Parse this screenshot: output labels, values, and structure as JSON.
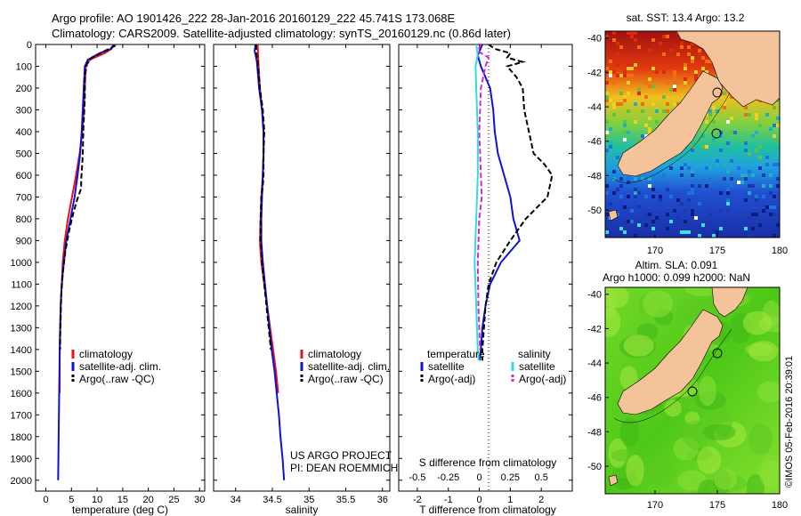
{
  "header": {
    "line1": "Argo profile: AO 1901426_222 28-Jan-2016 20160129_222 45.741S 173.068E",
    "line2": "Climatology: CARS2009. Satellite-adjusted climatology: synTS_20160129.nc (0.86d later)"
  },
  "watermark": "©IMOS 05-Feb-2016 20:39:01",
  "colors": {
    "red": "#e8101a",
    "blue": "#1010d8",
    "black": "#000000",
    "cyan": "#33dddd",
    "magenta": "#dd22dd"
  },
  "chart_data": [
    {
      "type": "line",
      "id": "temperature",
      "xlabel": "temperature (deg C)",
      "ylabel": "",
      "xlim": [
        -2,
        31
      ],
      "ylim": [
        2050,
        0
      ],
      "xticks": [
        0,
        5,
        10,
        15,
        20,
        25,
        30
      ],
      "yticks": [
        0,
        100,
        200,
        300,
        400,
        500,
        600,
        700,
        800,
        900,
        1000,
        1100,
        1200,
        1300,
        1400,
        1500,
        1600,
        1700,
        1800,
        1900,
        2000
      ],
      "legend": [
        "climatology",
        "satellite-adj. clim.",
        "Argo(..raw -QC)"
      ],
      "legend_position": "lower-right",
      "series": [
        {
          "name": "climatology",
          "color": "#e8101a",
          "style": "solid",
          "points": [
            [
              13.2,
              0
            ],
            [
              12.8,
              20
            ],
            [
              11.5,
              40
            ],
            [
              8.6,
              70
            ],
            [
              7.8,
              100
            ],
            [
              7.6,
              200
            ],
            [
              7.4,
              300
            ],
            [
              7.1,
              400
            ],
            [
              6.6,
              500
            ],
            [
              5.9,
              600
            ],
            [
              5.1,
              700
            ],
            [
              4.3,
              800
            ],
            [
              3.7,
              900
            ],
            [
              3.3,
              1000
            ],
            [
              3.1,
              1100
            ],
            [
              2.9,
              1200
            ],
            [
              2.8,
              1300
            ],
            [
              2.7,
              1400
            ],
            [
              2.7,
              1600
            ]
          ]
        },
        {
          "name": "satellite-adj. clim.",
          "color": "#1010d8",
          "style": "solid",
          "points": [
            [
              13.3,
              0
            ],
            [
              12.7,
              20
            ],
            [
              10.5,
              40
            ],
            [
              8.2,
              70
            ],
            [
              7.6,
              100
            ],
            [
              7.4,
              200
            ],
            [
              7.2,
              300
            ],
            [
              7.0,
              400
            ],
            [
              6.7,
              500
            ],
            [
              6.2,
              600
            ],
            [
              5.6,
              700
            ],
            [
              4.8,
              800
            ],
            [
              4.0,
              900
            ],
            [
              3.5,
              1000
            ],
            [
              3.1,
              1100
            ],
            [
              2.9,
              1200
            ],
            [
              2.8,
              1300
            ],
            [
              2.7,
              1400
            ],
            [
              2.6,
              1600
            ],
            [
              2.5,
              1800
            ],
            [
              2.4,
              2000
            ]
          ]
        },
        {
          "name": "Argo(..raw -QC)",
          "color": "#000000",
          "style": "dashed",
          "points": [
            [
              13.6,
              5
            ],
            [
              11.5,
              30
            ],
            [
              9.0,
              60
            ],
            [
              8.0,
              90
            ],
            [
              7.6,
              150
            ],
            [
              7.6,
              250
            ],
            [
              7.3,
              400
            ],
            [
              7.2,
              500
            ],
            [
              7.1,
              550
            ],
            [
              6.9,
              620
            ],
            [
              6.9,
              660
            ],
            [
              6.0,
              720
            ],
            [
              5.3,
              780
            ],
            [
              4.5,
              860
            ],
            [
              3.8,
              950
            ],
            [
              3.3,
              1050
            ],
            [
              3.0,
              1150
            ],
            [
              2.9,
              1250
            ],
            [
              2.8,
              1350
            ],
            [
              2.8,
              1400
            ]
          ]
        }
      ]
    },
    {
      "type": "line",
      "id": "salinity",
      "xlabel": "salinity",
      "ylabel": "",
      "xlim": [
        33.7,
        36.1
      ],
      "ylim": [
        2050,
        0
      ],
      "xticks": [
        34,
        34.5,
        35,
        35.5,
        36
      ],
      "legend": [
        "climatology",
        "satellite-adj. clim.",
        "Argo(..raw -QC)"
      ],
      "legend_position": "lower-right",
      "annotations": [
        "US ARGO PROJECT",
        "PI: DEAN ROEMMICH"
      ],
      "series": [
        {
          "name": "climatology",
          "color": "#e8101a",
          "style": "solid",
          "points": [
            [
              34.3,
              0
            ],
            [
              34.31,
              80
            ],
            [
              34.33,
              200
            ],
            [
              34.36,
              300
            ],
            [
              34.38,
              400
            ],
            [
              34.38,
              500
            ],
            [
              34.37,
              600
            ],
            [
              34.35,
              700
            ],
            [
              34.34,
              800
            ],
            [
              34.33,
              900
            ],
            [
              34.35,
              1000
            ],
            [
              34.39,
              1100
            ],
            [
              34.43,
              1200
            ],
            [
              34.47,
              1300
            ],
            [
              34.51,
              1400
            ],
            [
              34.55,
              1500
            ],
            [
              34.58,
              1600
            ]
          ]
        },
        {
          "name": "satellite-adj. clim.",
          "color": "#1010d8",
          "style": "solid",
          "points": [
            [
              34.27,
              0
            ],
            [
              34.26,
              30
            ],
            [
              34.29,
              80
            ],
            [
              34.32,
              200
            ],
            [
              34.36,
              300
            ],
            [
              34.38,
              400
            ],
            [
              34.38,
              500
            ],
            [
              34.37,
              600
            ],
            [
              34.36,
              700
            ],
            [
              34.35,
              800
            ],
            [
              34.35,
              900
            ],
            [
              34.37,
              1000
            ],
            [
              34.4,
              1100
            ],
            [
              34.43,
              1200
            ],
            [
              34.46,
              1300
            ],
            [
              34.49,
              1400
            ],
            [
              34.53,
              1500
            ],
            [
              34.56,
              1600
            ],
            [
              34.59,
              1700
            ],
            [
              34.61,
              1800
            ],
            [
              34.64,
              1900
            ],
            [
              34.66,
              2000
            ]
          ]
        },
        {
          "name": "Argo(..raw -QC)",
          "color": "#000000",
          "style": "dashed",
          "points": [
            [
              34.28,
              0
            ],
            [
              34.28,
              30
            ],
            [
              34.3,
              80
            ],
            [
              34.33,
              200
            ],
            [
              34.37,
              300
            ],
            [
              34.39,
              400
            ],
            [
              34.38,
              500
            ],
            [
              34.38,
              600
            ],
            [
              34.37,
              650
            ],
            [
              34.35,
              700
            ],
            [
              34.34,
              800
            ],
            [
              34.34,
              900
            ],
            [
              34.36,
              1000
            ],
            [
              34.39,
              1100
            ],
            [
              34.42,
              1200
            ],
            [
              34.45,
              1300
            ],
            [
              34.48,
              1400
            ]
          ]
        }
      ]
    },
    {
      "type": "line",
      "id": "difference",
      "xlabel": "T difference from climatology",
      "xlabel2": "S difference from climatology",
      "ylabel": "",
      "xlim": [
        -2.6,
        3.0
      ],
      "ylim": [
        2050,
        0
      ],
      "xticks": [
        -2,
        -1,
        0,
        1,
        2
      ],
      "xticks2": [
        "-0.5",
        "-0.25",
        "0",
        "0.25",
        "0.5"
      ],
      "legend_temperature_title": "temperature",
      "legend_salinity_title": "salinity",
      "legend": [
        "satellite",
        "Argo(-adj)",
        "satellite",
        "Argo(-adj)"
      ],
      "legend_position": "lower-right",
      "series": [
        {
          "name": "satellite",
          "group": "temperature",
          "color": "#1010d8",
          "style": "solid",
          "points": [
            [
              0.1,
              0
            ],
            [
              -0.05,
              50
            ],
            [
              0.05,
              100
            ],
            [
              0.35,
              200
            ],
            [
              0.45,
              300
            ],
            [
              0.5,
              400
            ],
            [
              0.6,
              500
            ],
            [
              0.8,
              600
            ],
            [
              1.0,
              700
            ],
            [
              1.1,
              800
            ],
            [
              1.3,
              900
            ],
            [
              0.7,
              1000
            ],
            [
              0.35,
              1100
            ],
            [
              0.2,
              1200
            ],
            [
              0.1,
              1300
            ],
            [
              0.05,
              1400
            ],
            [
              0.02,
              1450
            ]
          ]
        },
        {
          "name": "Argo(-adj)",
          "group": "temperature",
          "color": "#000000",
          "style": "dashed",
          "points": [
            [
              0.3,
              0
            ],
            [
              0.5,
              20
            ],
            [
              1.0,
              40
            ],
            [
              0.9,
              60
            ],
            [
              1.4,
              80
            ],
            [
              0.9,
              100
            ],
            [
              1.2,
              150
            ],
            [
              1.4,
              200
            ],
            [
              1.45,
              300
            ],
            [
              1.6,
              400
            ],
            [
              1.75,
              500
            ],
            [
              2.1,
              550
            ],
            [
              2.35,
              600
            ],
            [
              2.2,
              700
            ],
            [
              1.5,
              800
            ],
            [
              1.0,
              900
            ],
            [
              0.55,
              1000
            ],
            [
              0.3,
              1100
            ],
            [
              0.2,
              1200
            ],
            [
              0.15,
              1300
            ],
            [
              0.1,
              1400
            ],
            [
              0.1,
              1450
            ]
          ]
        },
        {
          "name": "satellite",
          "group": "salinity",
          "color": "#33dddd",
          "style": "solid",
          "points": [
            [
              -0.1,
              0
            ],
            [
              -0.05,
              50
            ],
            [
              -0.12,
              100
            ],
            [
              -0.1,
              200
            ],
            [
              -0.05,
              400
            ],
            [
              -0.05,
              600
            ],
            [
              -0.1,
              800
            ],
            [
              -0.15,
              1000
            ],
            [
              -0.1,
              1200
            ],
            [
              -0.05,
              1400
            ],
            [
              -0.02,
              1450
            ]
          ]
        },
        {
          "name": "Argo(-adj)",
          "group": "salinity",
          "color": "#dd22dd",
          "style": "dashed",
          "points": [
            [
              0.05,
              0
            ],
            [
              -0.05,
              30
            ],
            [
              0.3,
              60
            ],
            [
              0.2,
              100
            ],
            [
              0.05,
              200
            ],
            [
              0.0,
              400
            ],
            [
              0.05,
              600
            ],
            [
              0.08,
              700
            ],
            [
              0.0,
              800
            ],
            [
              -0.05,
              1000
            ],
            [
              -0.03,
              1200
            ],
            [
              0.0,
              1300
            ],
            [
              0.02,
              1400
            ]
          ]
        }
      ]
    },
    {
      "type": "heatmap",
      "id": "sst_map",
      "title": "sat. SST: 13.4 Argo: 13.2",
      "xlim": [
        166,
        180
      ],
      "ylim": [
        -51.6,
        -39.6
      ],
      "xticks": [
        170,
        175,
        180
      ],
      "yticks": [
        -40,
        -42,
        -44,
        -46,
        -48,
        -50
      ],
      "argo_position": [
        173.07,
        -45.74
      ]
    },
    {
      "type": "heatmap",
      "id": "sla_map",
      "title": "Altim. SLA: 0.091",
      "subtitle": "Argo h1000: 0.099 h2000: NaN",
      "xlim": [
        166,
        180
      ],
      "ylim": [
        -51.6,
        -39.6
      ],
      "xticks": [
        170,
        175,
        180
      ],
      "yticks": [
        -40,
        -42,
        -44,
        -46,
        -48,
        -50
      ],
      "argo_position": [
        173.07,
        -45.74
      ]
    }
  ]
}
